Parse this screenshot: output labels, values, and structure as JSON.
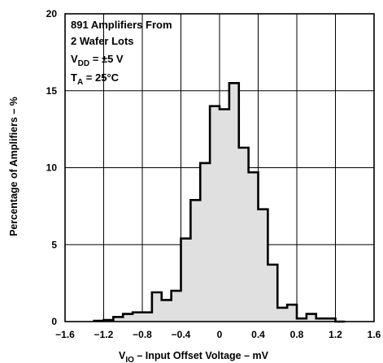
{
  "chart_data": {
    "type": "bar",
    "xlabel_main": "V",
    "xlabel_sub": "IO",
    "xlabel_rest": " – Input Offset Voltage – mV",
    "ylabel": "Percentage of Amplifiers – %",
    "xlim": [
      -1.6,
      1.6
    ],
    "ylim": [
      0,
      20
    ],
    "grid": true,
    "x_ticks": [
      "−1.6",
      "−1.2",
      "−0.8",
      "−0.4",
      "0",
      "0.4",
      "0.8",
      "1.2",
      "1.6"
    ],
    "y_ticks": [
      "0",
      "5",
      "10",
      "15",
      "20"
    ],
    "bin_width": 0.1,
    "x": [
      -1.3,
      -1.2,
      -1.1,
      -1.0,
      -0.9,
      -0.8,
      -0.7,
      -0.6,
      -0.5,
      -0.4,
      -0.3,
      -0.2,
      -0.1,
      0.0,
      0.1,
      0.2,
      0.3,
      0.4,
      0.5,
      0.6,
      0.7,
      0.8,
      0.9,
      1.0,
      1.1,
      1.2
    ],
    "values": [
      0.05,
      0.1,
      0.3,
      0.5,
      0.6,
      0.6,
      1.9,
      1.4,
      2.0,
      5.4,
      7.9,
      10.3,
      14.0,
      13.8,
      15.5,
      11.3,
      9.7,
      7.3,
      3.7,
      0.9,
      1.1,
      0.2,
      0.5,
      0.2,
      0.2,
      0.0
    ],
    "annotations": {
      "line1": "891 Amplifiers From",
      "line2": "2 Wafer Lots",
      "vdd_main": "V",
      "vdd_sub": "DD",
      "vdd_rest": " = ±5 V",
      "ta_main": "T",
      "ta_sub": "A",
      "ta_rest": " = 25°C"
    },
    "fill_color": "#e0e0e0",
    "line_color": "#000000"
  }
}
